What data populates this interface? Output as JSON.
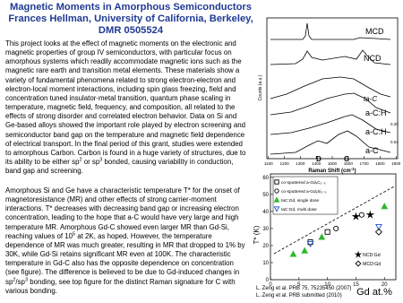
{
  "header": {
    "title": "Magnetic Moments in Amorphous Semiconductors",
    "author": "Frances Hellman, University of California, Berkeley,",
    "award": "DMR 0505524"
  },
  "paragraphs": [
    [
      {
        "text": "This project looks at the effect of magnetic moments on the electronic and magnetic properties of group IV semiconductors, with particular focus on amorphous systems which readily accommodate magnetic ions such as the magnetic rare earth and transition metal elements.  These materials show a variety of fundamental phenomena related to strong electron-electron and electron-local moment interactions, including spin glass freezing, field and concentration tuned insulator-metal transition, quantum phase scaling in temperature, magnetic field, frequency, and composition, all related to the effects of strong disorder and correlated electron behavior. Data on Si and Ge-based alloys showed the important role played by electron screening and semiconductor band gap on the temperature and magnetic field dependence of electrical transport.  In the final period of this grant, studies were extended to amorphous Carbon. Carbon is found in a huge variety of structures, due to its ability to be either sp"
      },
      {
        "sup": "2"
      },
      {
        "text": " or sp"
      },
      {
        "sup": "3"
      },
      {
        "text": " bonded, causing variability in conduction, band gap and screening."
      }
    ],
    [
      {
        "text": "Amorphous  Si and Ge have a characteristic temperature T* for the onset of magnetoresistance (MR) and other effects of strong carrier-moment interactions. T* decreases with decreasing band gap or increasing electron concentration, leading to the hope that a-C would have very large and high temperature MR.  Amorphous  Gd-C showed even larger MR than Gd-Si, reaching values of 10"
      },
      {
        "sup": "5"
      },
      {
        "text": " at 2K, as hoped.  However, the temperature dependence of MR  was much greater, resulting in MR that dropped to 1% by 30K, while Gd-Si retains significant MR even at 100K.  The characteristic temperature in Gd-C also has the opposite dependence on concentration (see figure). The difference is believed to be due to Gd-induced changes in sp"
      },
      {
        "sup": "2"
      },
      {
        "text": "/sp"
      },
      {
        "sup": "3"
      },
      {
        "text": " bonding, see top figure for the distinct Raman signature for C with various bonding."
      }
    ]
  ],
  "raman_figure": {
    "y_label": "Counts (a.u.)",
    "x_label": "Raman Shift (cm",
    "x_label_sup": "-1",
    "x_label_end": ")",
    "xlim": [
      1090,
      1910
    ],
    "xticks": [
      1100,
      1200,
      1300,
      1400,
      1500,
      1600,
      1700,
      1800,
      1900
    ],
    "curve_labels": [
      "MCD",
      "NCD",
      "ta-C",
      "a-C:H",
      "a-C:H",
      "a-C"
    ],
    "composition_labels": [
      "0.20",
      "0.04"
    ],
    "peak_labels": [
      "D",
      "G"
    ]
  },
  "tstar_figure": {
    "type": "scatter",
    "y_label": "T* (K)",
    "x_label": "Gd at.%",
    "xlim": [
      0,
      22
    ],
    "ylim": [
      0,
      62
    ],
    "xticks": [
      0,
      5,
      10,
      15,
      20
    ],
    "yticks": [
      0,
      10,
      20,
      30,
      40,
      50,
      60
    ],
    "series": [
      {
        "name": "co-sputtered a-GdₓC₁₋ₓ",
        "marker": "square",
        "color": "#000000",
        "x": [
          7,
          10
        ],
        "y": [
          22,
          28
        ]
      },
      {
        "name": "co-sputtered a-GdₓSi₁₋ₓ",
        "marker": "circle",
        "color": "#000000",
        "x": [
          11.5,
          16
        ],
        "y": [
          30,
          38
        ]
      },
      {
        "name": "taC:Gd, single dose",
        "marker": "triangle",
        "color": "#2eb82e",
        "x": [
          4,
          6,
          9,
          20
        ],
        "y": [
          15,
          17,
          25,
          43
        ]
      },
      {
        "name": "taC:Gd, multi dose",
        "marker": "triangle-down",
        "color": "#1f4fd1",
        "x": [
          7,
          19
        ],
        "y": [
          21,
          31
        ]
      },
      {
        "name": "NCD:Gd",
        "marker": "star",
        "color": "#000000",
        "x": [
          15,
          17.5
        ],
        "y": [
          37,
          38
        ]
      },
      {
        "name": "MCD:Gd",
        "marker": "diamond",
        "color": "#000000",
        "x": [
          19
        ],
        "y": [
          28
        ]
      }
    ],
    "citations": [
      "L. Zeng et al. PRB 75, 75235450 (2007)",
      "L. Zeng et al. PRB submitted (2010)"
    ]
  }
}
